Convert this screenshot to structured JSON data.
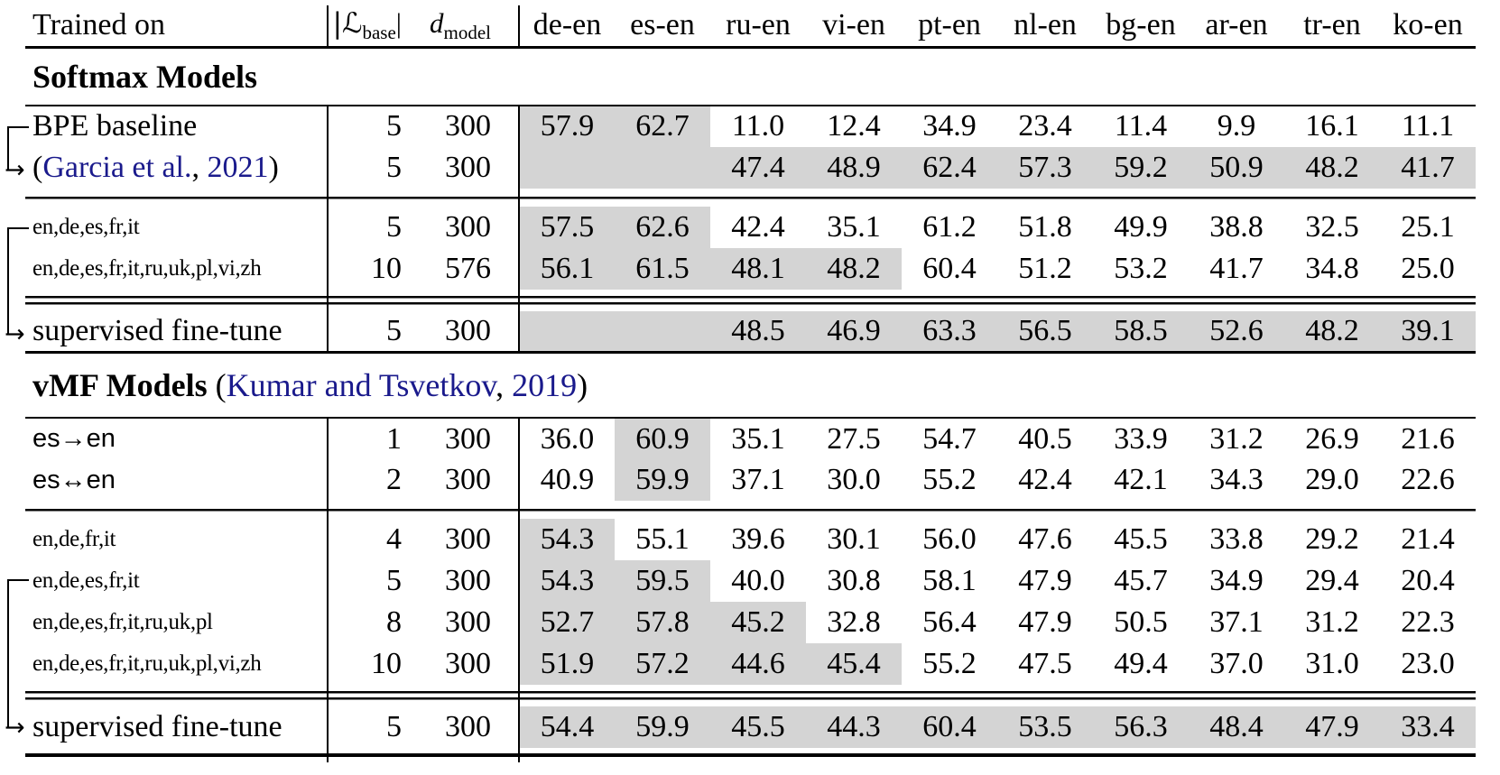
{
  "colors": {
    "row_shade": "#d4d4d4",
    "citation_link": "#1a1a8c",
    "rule": "#000000"
  },
  "icons": {
    "arrow_right": "→"
  },
  "header": {
    "trained_on": "Trained on",
    "lbase": {
      "prefix": "|ℒ",
      "sub": "base",
      "suffix": "|"
    },
    "dmodel": {
      "main": "d",
      "sub": "model"
    },
    "languages": [
      "de-en",
      "es-en",
      "ru-en",
      "vi-en",
      "pt-en",
      "nl-en",
      "bg-en",
      "ar-en",
      "tr-en",
      "ko-en"
    ]
  },
  "rows": [
    {
      "type": "section",
      "bold": "Softmax Models",
      "cite": null
    },
    {
      "type": "data",
      "label": "BPE baseline",
      "label_style": "serif",
      "lbase": "5",
      "dmodel": "300",
      "values": [
        "57.9",
        "62.7",
        "11.0",
        "12.4",
        "34.9",
        "23.4",
        "11.4",
        "9.9",
        "16.1",
        "11.1"
      ],
      "shaded": [
        0,
        1
      ]
    },
    {
      "type": "data",
      "label_cite": {
        "pre": "(",
        "link1": "Garcia et al.",
        "mid": ",",
        "link2": " 2021",
        "post": ")"
      },
      "label_style": "serif",
      "lbase": "5",
      "dmodel": "300",
      "values": [
        "",
        "",
        "47.4",
        "48.9",
        "62.4",
        "57.3",
        "59.2",
        "50.9",
        "48.2",
        "41.7"
      ],
      "shaded": [
        0,
        1,
        2,
        3,
        4,
        5,
        6,
        7,
        8,
        9
      ]
    },
    {
      "type": "rule",
      "style": "single"
    },
    {
      "type": "data",
      "label": "en,de,es,fr,it",
      "label_style": "small",
      "lbase": "5",
      "dmodel": "300",
      "values": [
        "57.5",
        "62.6",
        "42.4",
        "35.1",
        "61.2",
        "51.8",
        "49.9",
        "38.8",
        "32.5",
        "25.1"
      ],
      "shaded": [
        0,
        1
      ]
    },
    {
      "type": "data",
      "label": "en,de,es,fr,it,ru,uk,pl,vi,zh",
      "label_style": "small",
      "lbase": "10",
      "dmodel": "576",
      "values": [
        "56.1",
        "61.5",
        "48.1",
        "48.2",
        "60.4",
        "51.2",
        "53.2",
        "41.7",
        "34.8",
        "25.0"
      ],
      "shaded": [
        0,
        1,
        2,
        3
      ]
    },
    {
      "type": "rule",
      "style": "double"
    },
    {
      "type": "data",
      "label": "supervised fine-tune",
      "label_style": "serif",
      "lbase": "5",
      "dmodel": "300",
      "values": [
        "",
        "",
        "48.5",
        "46.9",
        "63.3",
        "56.5",
        "58.5",
        "52.6",
        "48.2",
        "39.1"
      ],
      "shaded": [
        0,
        1,
        2,
        3,
        4,
        5,
        6,
        7,
        8,
        9
      ]
    },
    {
      "type": "section",
      "bold": "vMF Models",
      "heavy_top": true,
      "cite": {
        "pre": " (",
        "link1": "Kumar and Tsvetkov",
        "mid": ",",
        "link2": " 2019",
        "post": ")"
      }
    },
    {
      "type": "data",
      "label": "es→en",
      "label_style": "sans",
      "lbase": "1",
      "dmodel": "300",
      "values": [
        "36.0",
        "60.9",
        "35.1",
        "27.5",
        "54.7",
        "40.5",
        "33.9",
        "31.2",
        "26.9",
        "21.6"
      ],
      "shaded": [
        1
      ]
    },
    {
      "type": "data",
      "label": "es↔en",
      "label_style": "sans",
      "lbase": "2",
      "dmodel": "300",
      "values": [
        "40.9",
        "59.9",
        "37.1",
        "30.0",
        "55.2",
        "42.4",
        "42.1",
        "34.3",
        "29.0",
        "22.6"
      ],
      "shaded": [
        1
      ]
    },
    {
      "type": "rule",
      "style": "single"
    },
    {
      "type": "data",
      "label": "en,de,fr,it",
      "label_style": "small",
      "lbase": "4",
      "dmodel": "300",
      "values": [
        "54.3",
        "55.1",
        "39.6",
        "30.1",
        "56.0",
        "47.6",
        "45.5",
        "33.8",
        "29.2",
        "21.4"
      ],
      "shaded": [
        0
      ]
    },
    {
      "type": "data",
      "label": "en,de,es,fr,it",
      "label_style": "small",
      "lbase": "5",
      "dmodel": "300",
      "values": [
        "54.3",
        "59.5",
        "40.0",
        "30.8",
        "58.1",
        "47.9",
        "45.7",
        "34.9",
        "29.4",
        "20.4"
      ],
      "shaded": [
        0,
        1
      ]
    },
    {
      "type": "data",
      "label": "en,de,es,fr,it,ru,uk,pl",
      "label_style": "small",
      "lbase": "8",
      "dmodel": "300",
      "values": [
        "52.7",
        "57.8",
        "45.2",
        "32.8",
        "56.4",
        "47.9",
        "50.5",
        "37.1",
        "31.2",
        "22.3"
      ],
      "shaded": [
        0,
        1,
        2
      ]
    },
    {
      "type": "data",
      "label": "en,de,es,fr,it,ru,uk,pl,vi,zh",
      "label_style": "small",
      "lbase": "10",
      "dmodel": "300",
      "values": [
        "51.9",
        "57.2",
        "44.6",
        "45.4",
        "55.2",
        "47.5",
        "49.4",
        "37.0",
        "31.0",
        "23.0"
      ],
      "shaded": [
        0,
        1,
        2,
        3
      ]
    },
    {
      "type": "rule",
      "style": "double"
    },
    {
      "type": "data",
      "label": "supervised fine-tune",
      "label_style": "serif",
      "lbase": "5",
      "dmodel": "300",
      "values": [
        "54.4",
        "59.9",
        "45.5",
        "44.3",
        "60.4",
        "53.5",
        "56.3",
        "48.4",
        "47.9",
        "33.4"
      ],
      "shaded": [
        0,
        1,
        2,
        3,
        4,
        5,
        6,
        7,
        8,
        9
      ]
    },
    {
      "type": "bottom"
    }
  ]
}
